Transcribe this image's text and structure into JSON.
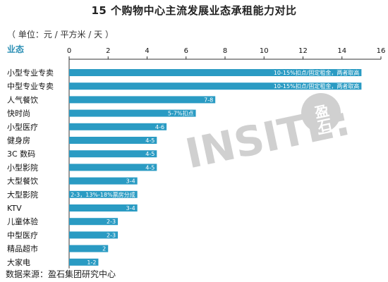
{
  "title": "15 个购物中心主流发展业态承租能力对比",
  "unit_note": "（ 单位：元 / 平方米 / 天 ）",
  "source": "数据来源：盈石集团研究中心",
  "watermark": {
    "text": "INSITE:",
    "logo_text": "盈石"
  },
  "colors": {
    "bar": "#2a9bc3",
    "header": "#2b8fb5",
    "axis": "#333333"
  },
  "chart_data": {
    "type": "bar",
    "orientation": "horizontal",
    "title": "15 个购物中心主流发展业态承租能力对比",
    "category_header": "业态",
    "categories": [
      "小型专业专卖",
      "中型专业专卖",
      "人气餐饮",
      "快时尚",
      "小型医疗",
      "健身房",
      "3C 数码",
      "小型影院",
      "大型餐饮",
      "大型影院",
      "KTV",
      "儿童体验",
      "中型医疗",
      "精品超市",
      "大家电"
    ],
    "values": [
      15,
      15,
      7.5,
      6.5,
      5,
      4.5,
      4.5,
      4.5,
      3.5,
      3.5,
      3.5,
      2.5,
      2.5,
      2,
      1.5
    ],
    "data_labels": [
      "10-15%扣点/固定租金，两者取高",
      "10-15%扣点/固定租金，两者取高",
      "7-8",
      "5-7%扣点",
      "4-6",
      "4-5",
      "4-5",
      "4-5",
      "3-4",
      "2-3，13%-18%票房分成",
      "3-4",
      "2-3",
      "2-3",
      "2",
      "1-2"
    ],
    "xlim": [
      0,
      16
    ],
    "x_ticks": [
      0,
      2,
      4,
      6,
      8,
      10,
      12,
      14,
      16
    ],
    "axis_position": "top",
    "grid": false,
    "legend": "none"
  }
}
